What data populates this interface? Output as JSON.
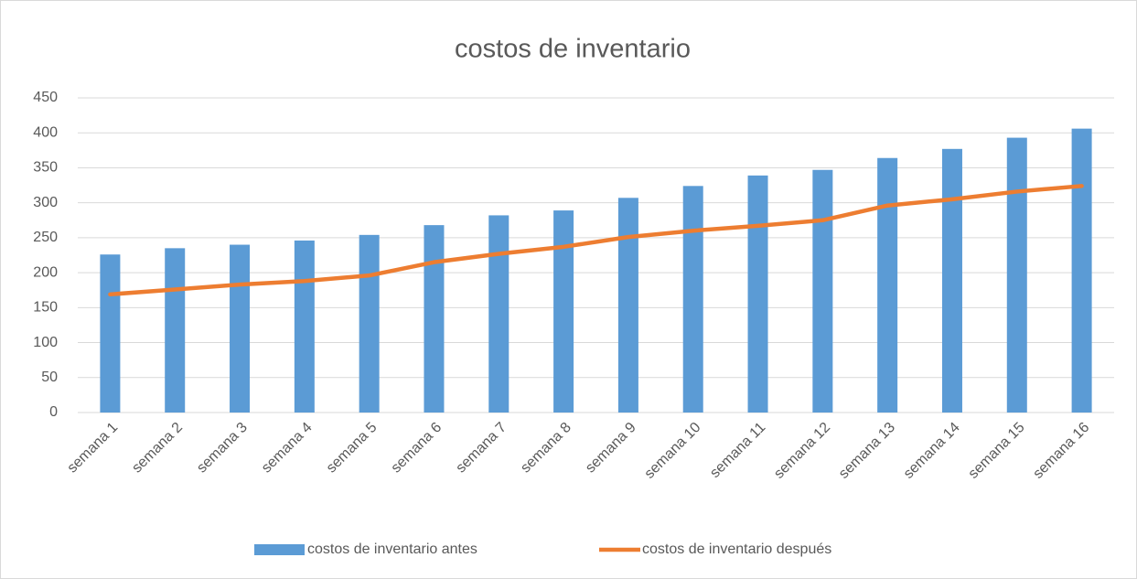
{
  "chart_data": {
    "type": "bar_line",
    "title": "costos de inventario",
    "categories": [
      "semana 1",
      "semana 2",
      "semana 3",
      "semana 4",
      "semana 5",
      "semana 6",
      "semana 7",
      "semana 8",
      "semana 9",
      "semana 10",
      "semana 11",
      "semana 12",
      "semana 13",
      "semana 14",
      "semana 15",
      "semana 16"
    ],
    "series": [
      {
        "name": "costos de inventario antes",
        "type": "bar",
        "color": "#5b9bd5",
        "values": [
          226,
          235,
          240,
          246,
          254,
          268,
          282,
          289,
          307,
          324,
          339,
          347,
          364,
          377,
          393,
          406
        ]
      },
      {
        "name": "costos de inventario después",
        "type": "line",
        "color": "#ed7d31",
        "values": [
          169,
          176,
          183,
          188,
          196,
          215,
          227,
          237,
          251,
          260,
          267,
          275,
          296,
          305,
          316,
          324
        ]
      }
    ],
    "ylim": [
      0,
      450
    ],
    "yticks": [
      0,
      50,
      100,
      150,
      200,
      250,
      300,
      350,
      400,
      450
    ],
    "grid": true,
    "legend": "bottom"
  }
}
